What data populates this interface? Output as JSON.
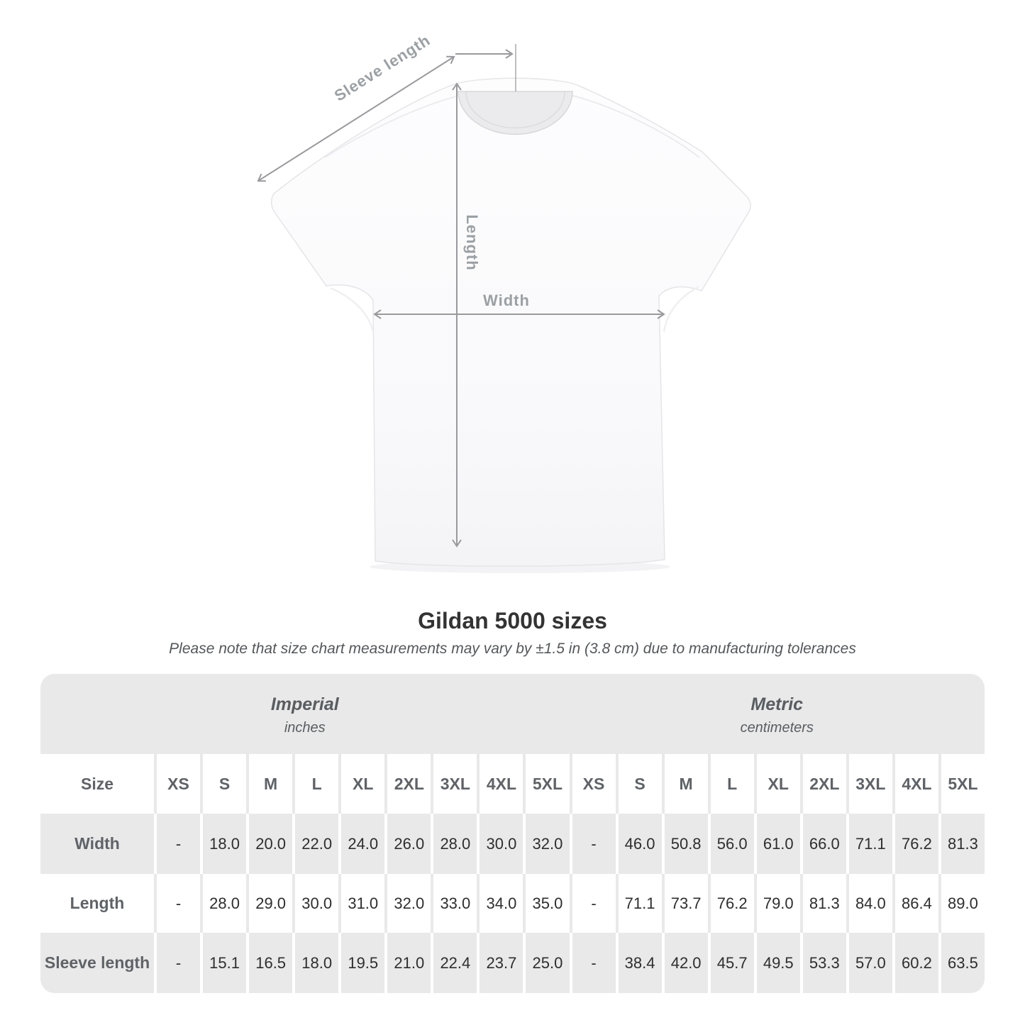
{
  "diagram": {
    "labels": {
      "sleeve_length": "Sleeve length",
      "length": "Length",
      "width": "Width"
    }
  },
  "title": "Gildan 5000 sizes",
  "subtitle": "Please note that size chart measurements may vary by ±1.5 in (3.8 cm) due to manufacturing tolerances",
  "table": {
    "groups": [
      {
        "name": "Imperial",
        "unit": "inches"
      },
      {
        "name": "Metric",
        "unit": "centimeters"
      }
    ],
    "size_header": "Size",
    "sizes": [
      "XS",
      "S",
      "M",
      "L",
      "XL",
      "2XL",
      "3XL",
      "4XL",
      "5XL"
    ],
    "rows": [
      {
        "label": "Width",
        "imperial": [
          "-",
          "18.0",
          "20.0",
          "22.0",
          "24.0",
          "26.0",
          "28.0",
          "30.0",
          "32.0"
        ],
        "metric": [
          "-",
          "46.0",
          "50.8",
          "56.0",
          "61.0",
          "66.0",
          "71.1",
          "76.2",
          "81.3"
        ]
      },
      {
        "label": "Length",
        "imperial": [
          "-",
          "28.0",
          "29.0",
          "30.0",
          "31.0",
          "32.0",
          "33.0",
          "34.0",
          "35.0"
        ],
        "metric": [
          "-",
          "71.1",
          "73.7",
          "76.2",
          "79.0",
          "81.3",
          "84.0",
          "86.4",
          "89.0"
        ]
      },
      {
        "label": "Sleeve length",
        "imperial": [
          "-",
          "15.1",
          "16.5",
          "18.0",
          "19.5",
          "21.0",
          "22.4",
          "23.7",
          "25.0"
        ],
        "metric": [
          "-",
          "38.4",
          "42.0",
          "45.7",
          "49.5",
          "53.3",
          "57.0",
          "60.2",
          "63.5"
        ]
      }
    ]
  },
  "colors": {
    "band_gray": "#e9e9e9",
    "label_text": "#5f6367",
    "value_text": "#2e2e2e",
    "diagram_gray": "#9ba0a4",
    "title_text": "#333333"
  }
}
